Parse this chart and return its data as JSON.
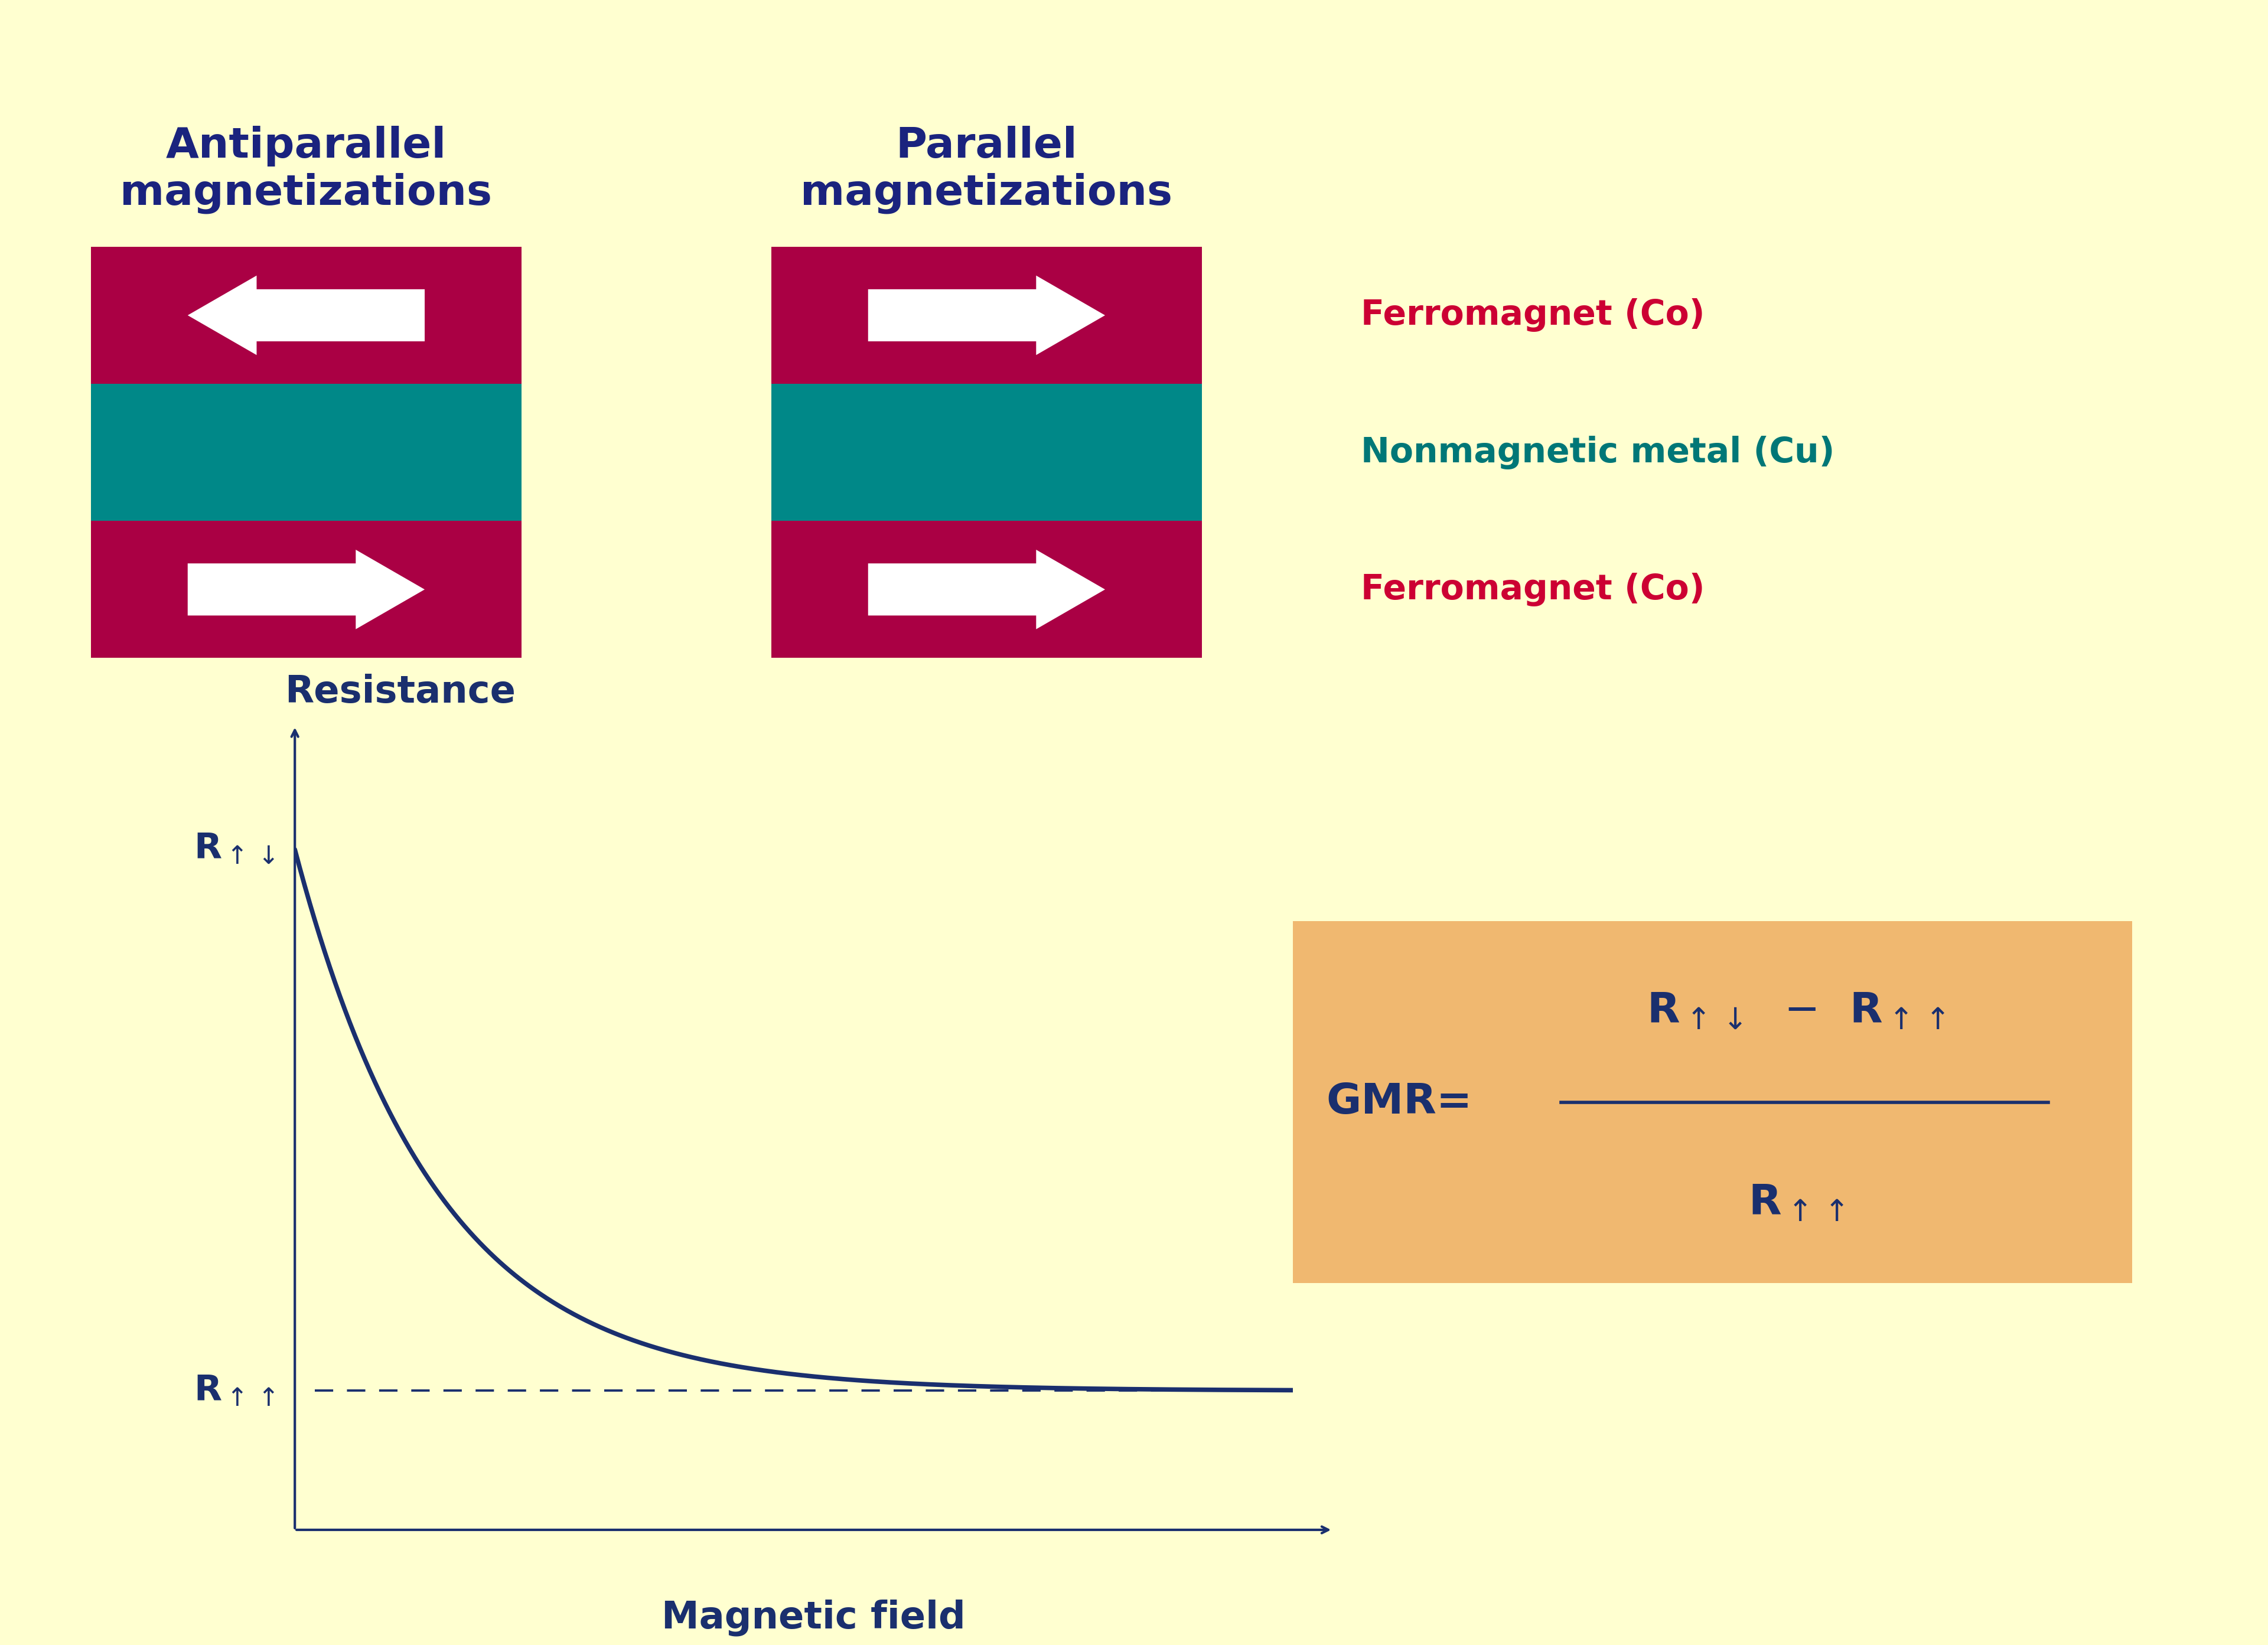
{
  "background_color": "#ffffd0",
  "ferromagnet_color": "#aa0044",
  "nonmagnetic_color": "#008888",
  "arrow_color": "#ffffff",
  "title_color": "#1a237e",
  "legend_ferromagnet_color": "#cc0033",
  "legend_nonmagnetic_color": "#007777",
  "curve_color": "#1a2f6e",
  "dashed_color": "#1a2f6e",
  "gmr_box_color": "#f0b870",
  "antiparallel_title": "Antiparallel\nmagnetizations",
  "parallel_title": "Parallel\nmagnetizations",
  "legend_ferromagnet": "Ferromagnet (Co)",
  "legend_nonmagnetic": "Nonmagnetic metal (Cu)",
  "legend_ferromagnet2": "Ferromagnet (Co)",
  "resistance_label": "Resistance",
  "field_label": "Magnetic field",
  "title_fontsize": 52,
  "label_fontsize": 46,
  "legend_fontsize": 42,
  "axis_label_fontsize": 46,
  "r_label_fontsize": 44,
  "gmr_fontsize": 52
}
